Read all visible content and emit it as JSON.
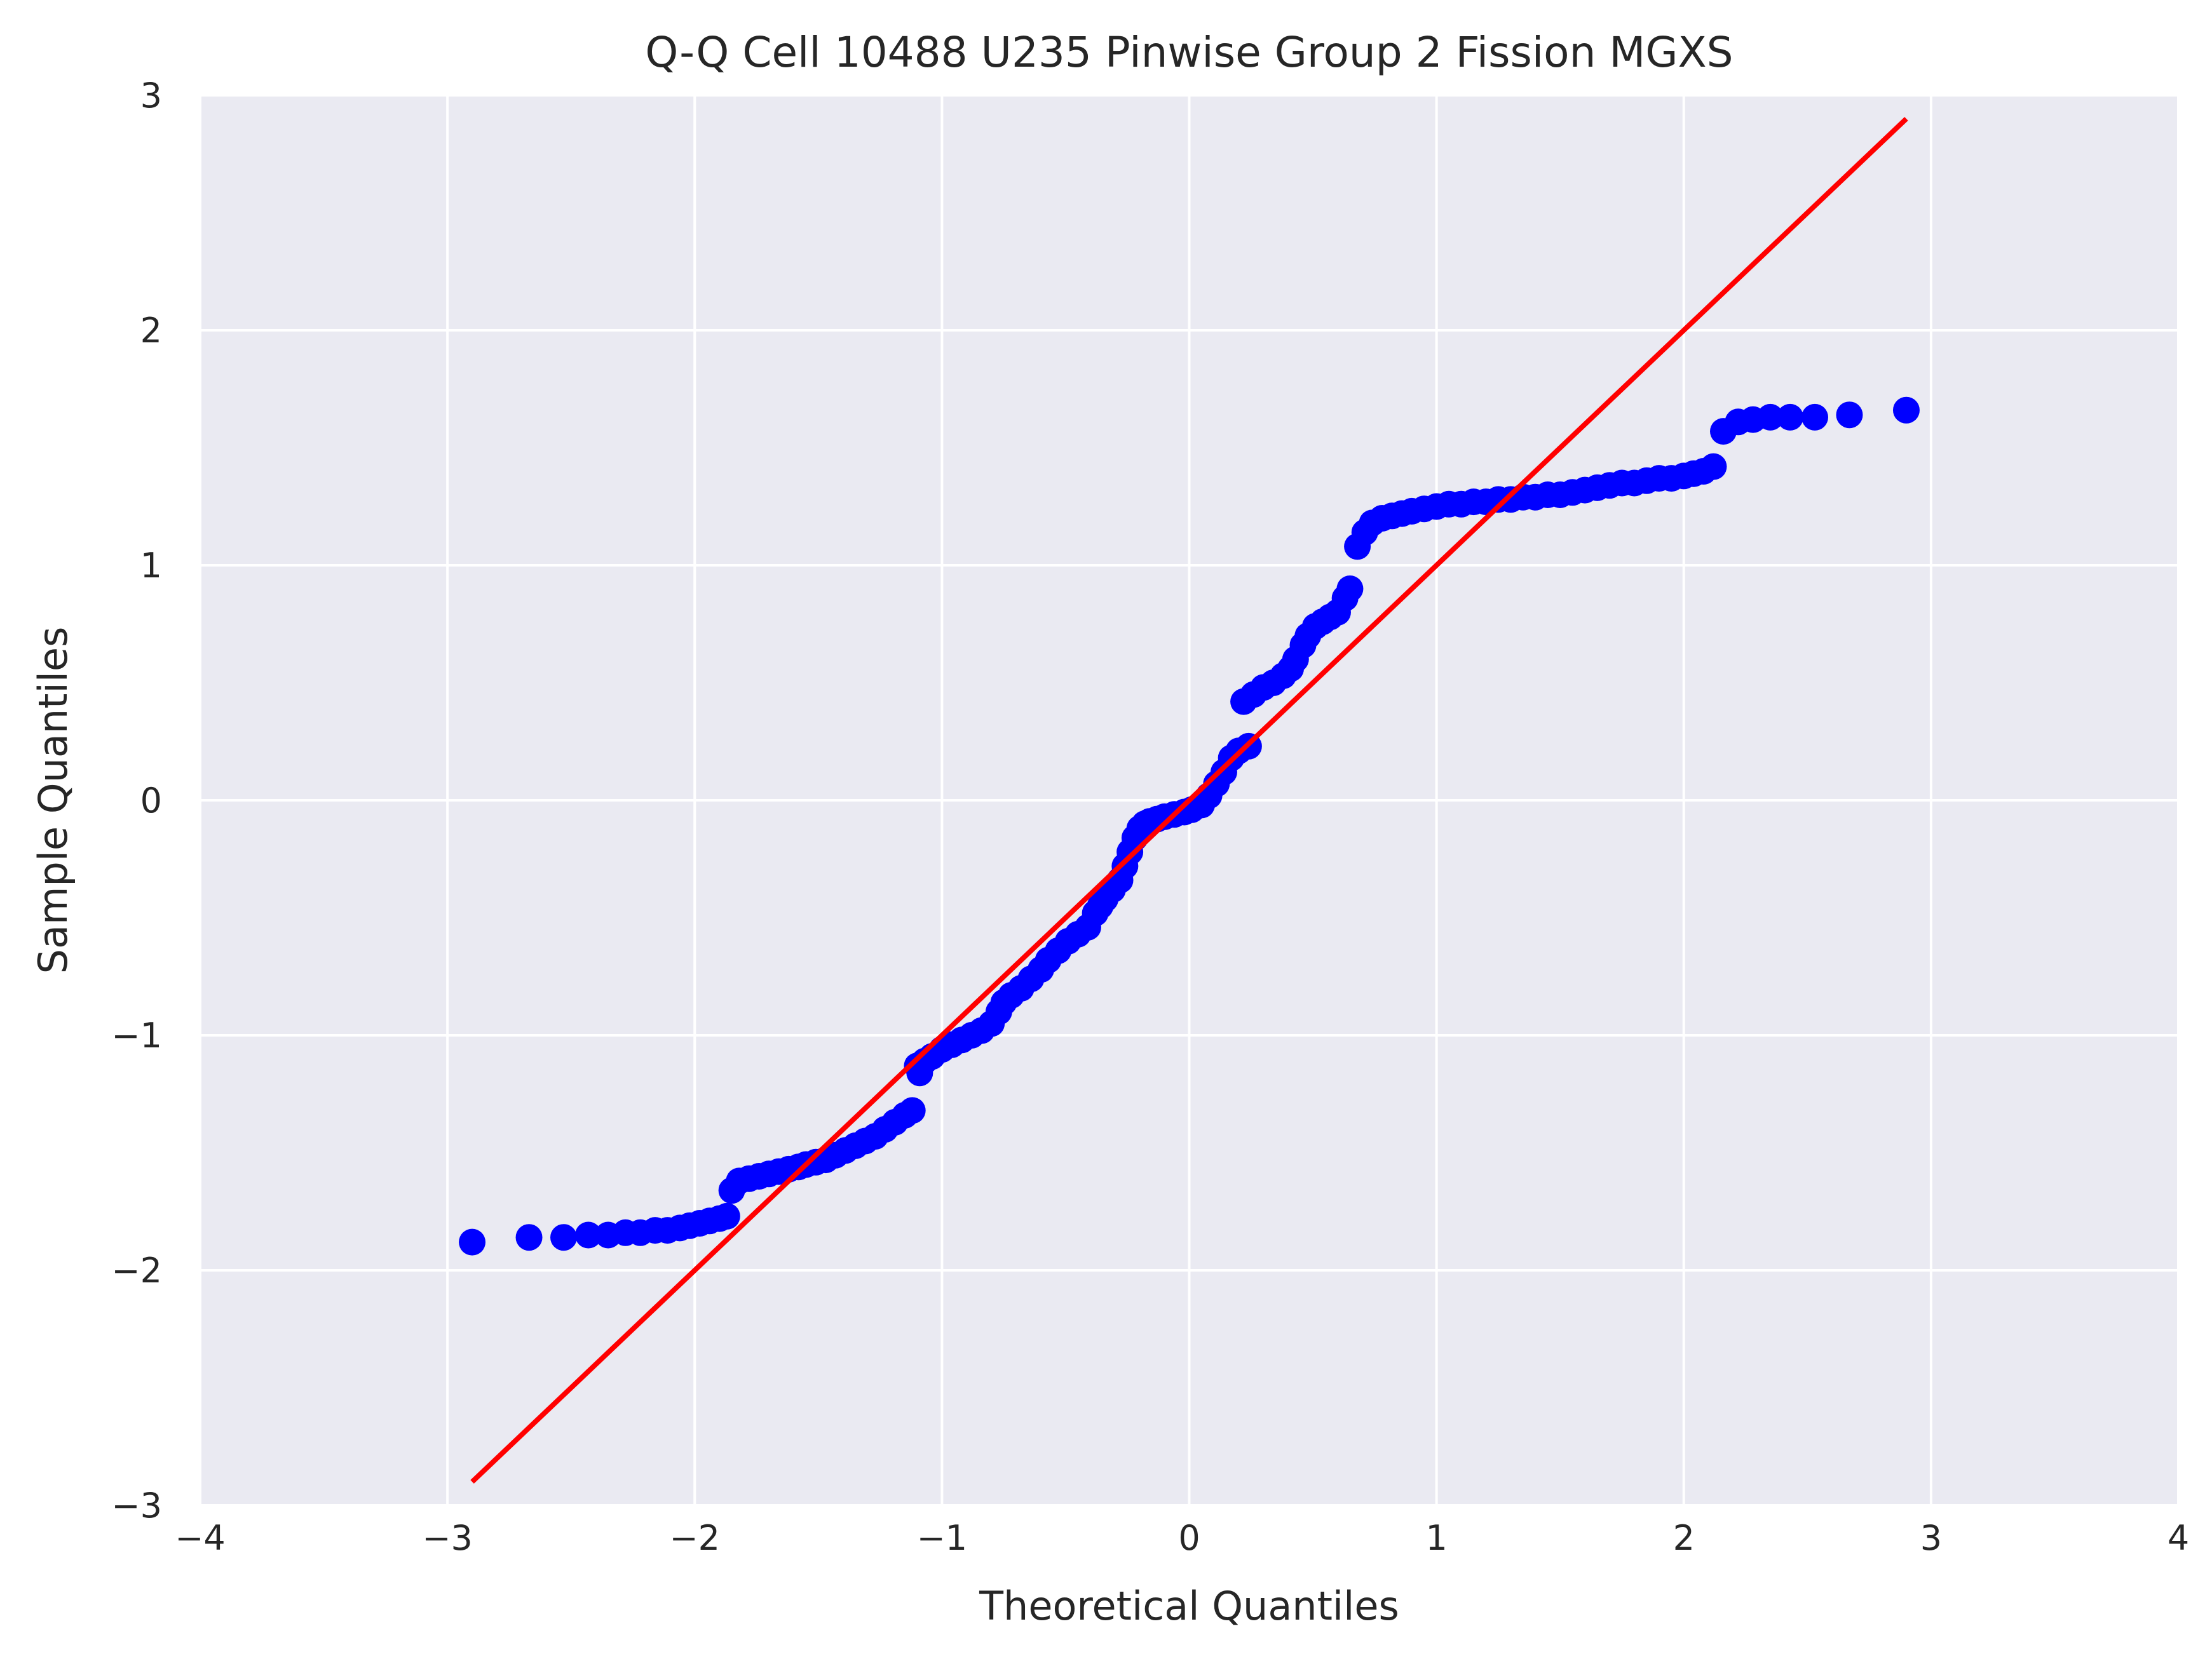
{
  "chart_data": {
    "type": "scatter",
    "title": "Q-Q Cell 10488 U235 Pinwise Group 2 Fission MGXS",
    "xlabel": "Theoretical Quantiles",
    "ylabel": "Sample Quantiles",
    "xlim": [
      -4,
      4
    ],
    "ylim": [
      -3,
      3
    ],
    "xticks": [
      -4,
      -3,
      -2,
      -1,
      0,
      1,
      2,
      3,
      4
    ],
    "yticks": [
      -3,
      -2,
      -1,
      0,
      1,
      2,
      3
    ],
    "xtick_labels": [
      "−4",
      "−3",
      "−2",
      "−1",
      "0",
      "1",
      "2",
      "3",
      "4"
    ],
    "ytick_labels": [
      "−3",
      "−2",
      "−1",
      "0",
      "1",
      "2",
      "3"
    ],
    "grid": true,
    "background_color": "#eaeaf2",
    "grid_color": "#ffffff",
    "series": [
      {
        "kind": "points",
        "color": "#0000ff",
        "x": [
          -2.9,
          -2.67,
          -2.53,
          -2.43,
          -2.35,
          -2.28,
          -2.22,
          -2.16,
          -2.11,
          -2.06,
          -2.02,
          -1.98,
          -1.94,
          -1.9,
          -1.87,
          -1.85,
          -1.82,
          -1.78,
          -1.74,
          -1.7,
          -1.66,
          -1.62,
          -1.58,
          -1.55,
          -1.51,
          -1.47,
          -1.43,
          -1.39,
          -1.35,
          -1.31,
          -1.27,
          -1.23,
          -1.19,
          -1.15,
          -1.12,
          -1.09,
          -1.1,
          -1.07,
          -1.04,
          -1.0,
          -0.96,
          -0.92,
          -0.88,
          -0.84,
          -0.8,
          -0.77,
          -0.75,
          -0.72,
          -0.68,
          -0.64,
          -0.6,
          -0.57,
          -0.53,
          -0.49,
          -0.45,
          -0.41,
          -0.38,
          -0.36,
          -0.34,
          -0.31,
          -0.28,
          -0.26,
          -0.24,
          -0.22,
          -0.2,
          -0.18,
          -0.16,
          -0.13,
          -0.1,
          -0.06,
          -0.02,
          0.01,
          0.05,
          0.08,
          0.11,
          0.14,
          0.17,
          0.2,
          0.24,
          0.22,
          0.26,
          0.3,
          0.34,
          0.38,
          0.41,
          0.43,
          0.46,
          0.48,
          0.51,
          0.54,
          0.57,
          0.6,
          0.63,
          0.65,
          0.68,
          0.71,
          0.74,
          0.78,
          0.82,
          0.86,
          0.9,
          0.95,
          1.0,
          1.05,
          1.1,
          1.15,
          1.2,
          1.25,
          1.3,
          1.35,
          1.4,
          1.45,
          1.5,
          1.55,
          1.6,
          1.65,
          1.7,
          1.75,
          1.8,
          1.85,
          1.9,
          1.95,
          2.0,
          2.04,
          2.08,
          2.12,
          2.16,
          2.22,
          2.28,
          2.35,
          2.43,
          2.53,
          2.67,
          2.9
        ],
        "y": [
          -1.88,
          -1.86,
          -1.86,
          -1.85,
          -1.85,
          -1.84,
          -1.84,
          -1.83,
          -1.83,
          -1.82,
          -1.81,
          -1.8,
          -1.79,
          -1.78,
          -1.77,
          -1.66,
          -1.62,
          -1.61,
          -1.6,
          -1.59,
          -1.58,
          -1.57,
          -1.56,
          -1.55,
          -1.54,
          -1.53,
          -1.51,
          -1.49,
          -1.47,
          -1.45,
          -1.43,
          -1.4,
          -1.37,
          -1.34,
          -1.32,
          -1.16,
          -1.13,
          -1.11,
          -1.09,
          -1.06,
          -1.04,
          -1.02,
          -1.0,
          -0.98,
          -0.95,
          -0.9,
          -0.86,
          -0.83,
          -0.8,
          -0.76,
          -0.72,
          -0.68,
          -0.64,
          -0.6,
          -0.57,
          -0.54,
          -0.48,
          -0.45,
          -0.42,
          -0.38,
          -0.34,
          -0.28,
          -0.22,
          -0.16,
          -0.12,
          -0.1,
          -0.09,
          -0.08,
          -0.07,
          -0.06,
          -0.05,
          -0.04,
          -0.02,
          0.02,
          0.07,
          0.12,
          0.18,
          0.21,
          0.23,
          0.42,
          0.45,
          0.48,
          0.5,
          0.53,
          0.56,
          0.6,
          0.66,
          0.7,
          0.74,
          0.76,
          0.78,
          0.8,
          0.86,
          0.9,
          1.08,
          1.14,
          1.18,
          1.2,
          1.21,
          1.22,
          1.23,
          1.24,
          1.25,
          1.26,
          1.26,
          1.27,
          1.27,
          1.28,
          1.28,
          1.29,
          1.29,
          1.3,
          1.3,
          1.31,
          1.32,
          1.33,
          1.34,
          1.35,
          1.35,
          1.36,
          1.37,
          1.37,
          1.38,
          1.39,
          1.4,
          1.42,
          1.57,
          1.61,
          1.62,
          1.63,
          1.63,
          1.63,
          1.64,
          1.66
        ]
      },
      {
        "kind": "line",
        "color": "#ff0000",
        "x": [
          -2.9,
          2.9
        ],
        "y": [
          -2.9,
          2.9
        ]
      }
    ]
  }
}
